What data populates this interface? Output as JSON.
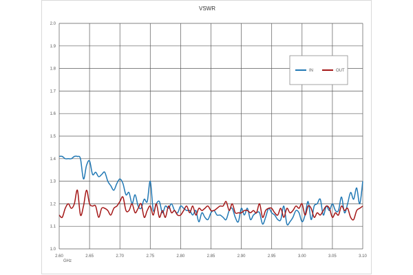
{
  "chart_data": {
    "type": "line",
    "title": "VSWR",
    "xlabel": "",
    "ylabel": "",
    "x_unit": "GHz",
    "xlim": [
      2.6,
      3.1
    ],
    "ylim": [
      1.0,
      2.0
    ],
    "x_ticks": [
      "2.60",
      "2.65",
      "2.70",
      "2.75",
      "2.80",
      "2.85",
      "2.90",
      "2.95",
      "3.00",
      "3.05",
      "3.10"
    ],
    "y_ticks": [
      "1.0",
      "1.1",
      "1.2",
      "1.3",
      "1.4",
      "1.5",
      "1.6",
      "1.7",
      "1.8",
      "1.9",
      "2.0"
    ],
    "grid": true,
    "legend_position": "top-right",
    "x": [
      2.6,
      2.605,
      2.61,
      2.615,
      2.62,
      2.625,
      2.63,
      2.635,
      2.64,
      2.645,
      2.65,
      2.655,
      2.66,
      2.665,
      2.67,
      2.675,
      2.68,
      2.685,
      2.69,
      2.695,
      2.7,
      2.705,
      2.71,
      2.715,
      2.72,
      2.725,
      2.73,
      2.735,
      2.74,
      2.745,
      2.75,
      2.755,
      2.76,
      2.765,
      2.77,
      2.775,
      2.78,
      2.785,
      2.79,
      2.795,
      2.8,
      2.805,
      2.81,
      2.815,
      2.82,
      2.825,
      2.83,
      2.835,
      2.84,
      2.845,
      2.85,
      2.855,
      2.86,
      2.865,
      2.87,
      2.875,
      2.88,
      2.885,
      2.89,
      2.895,
      2.9,
      2.905,
      2.91,
      2.915,
      2.92,
      2.925,
      2.93,
      2.935,
      2.94,
      2.945,
      2.95,
      2.955,
      2.96,
      2.965,
      2.97,
      2.975,
      2.98,
      2.985,
      2.99,
      2.995,
      3.0,
      3.005,
      3.01,
      3.015,
      3.02,
      3.025,
      3.03,
      3.035,
      3.04,
      3.045,
      3.05,
      3.055,
      3.06,
      3.065,
      3.07,
      3.075,
      3.08,
      3.085,
      3.09,
      3.095,
      3.1
    ],
    "series": [
      {
        "name": "IN",
        "color": "#1f77b4",
        "values": [
          1.41,
          1.41,
          1.4,
          1.4,
          1.4,
          1.41,
          1.41,
          1.4,
          1.31,
          1.37,
          1.39,
          1.33,
          1.34,
          1.32,
          1.33,
          1.34,
          1.3,
          1.28,
          1.26,
          1.29,
          1.31,
          1.29,
          1.24,
          1.25,
          1.2,
          1.24,
          1.19,
          1.18,
          1.22,
          1.21,
          1.3,
          1.17,
          1.2,
          1.21,
          1.16,
          1.19,
          1.18,
          1.2,
          1.17,
          1.16,
          1.19,
          1.18,
          1.17,
          1.17,
          1.15,
          1.17,
          1.12,
          1.16,
          1.14,
          1.13,
          1.16,
          1.17,
          1.15,
          1.15,
          1.14,
          1.13,
          1.17,
          1.18,
          1.14,
          1.12,
          1.18,
          1.15,
          1.18,
          1.13,
          1.15,
          1.16,
          1.16,
          1.11,
          1.14,
          1.18,
          1.16,
          1.15,
          1.13,
          1.13,
          1.19,
          1.11,
          1.12,
          1.14,
          1.17,
          1.16,
          1.12,
          1.15,
          1.21,
          1.13,
          1.19,
          1.2,
          1.22,
          1.15,
          1.19,
          1.17,
          1.2,
          1.17,
          1.17,
          1.23,
          1.16,
          1.2,
          1.25,
          1.22,
          1.27,
          1.2,
          1.3
        ]
      },
      {
        "name": "OUT",
        "color": "#a31515",
        "values": [
          1.15,
          1.14,
          1.18,
          1.2,
          1.18,
          1.2,
          1.26,
          1.15,
          1.19,
          1.26,
          1.2,
          1.19,
          1.19,
          1.14,
          1.18,
          1.18,
          1.17,
          1.15,
          1.18,
          1.19,
          1.21,
          1.23,
          1.17,
          1.17,
          1.2,
          1.16,
          1.18,
          1.2,
          1.14,
          1.17,
          1.19,
          1.15,
          1.2,
          1.14,
          1.17,
          1.14,
          1.19,
          1.16,
          1.17,
          1.15,
          1.15,
          1.17,
          1.19,
          1.16,
          1.19,
          1.15,
          1.18,
          1.17,
          1.18,
          1.19,
          1.17,
          1.17,
          1.18,
          1.19,
          1.19,
          1.21,
          1.17,
          1.2,
          1.16,
          1.16,
          1.16,
          1.17,
          1.17,
          1.16,
          1.17,
          1.16,
          1.2,
          1.14,
          1.17,
          1.18,
          1.18,
          1.16,
          1.15,
          1.18,
          1.14,
          1.18,
          1.16,
          1.17,
          1.19,
          1.18,
          1.2,
          1.15,
          1.19,
          1.18,
          1.14,
          1.16,
          1.15,
          1.17,
          1.19,
          1.18,
          1.14,
          1.16,
          1.15,
          1.19,
          1.17,
          1.18,
          1.14,
          1.13,
          1.17,
          1.18,
          1.19
        ]
      }
    ]
  }
}
